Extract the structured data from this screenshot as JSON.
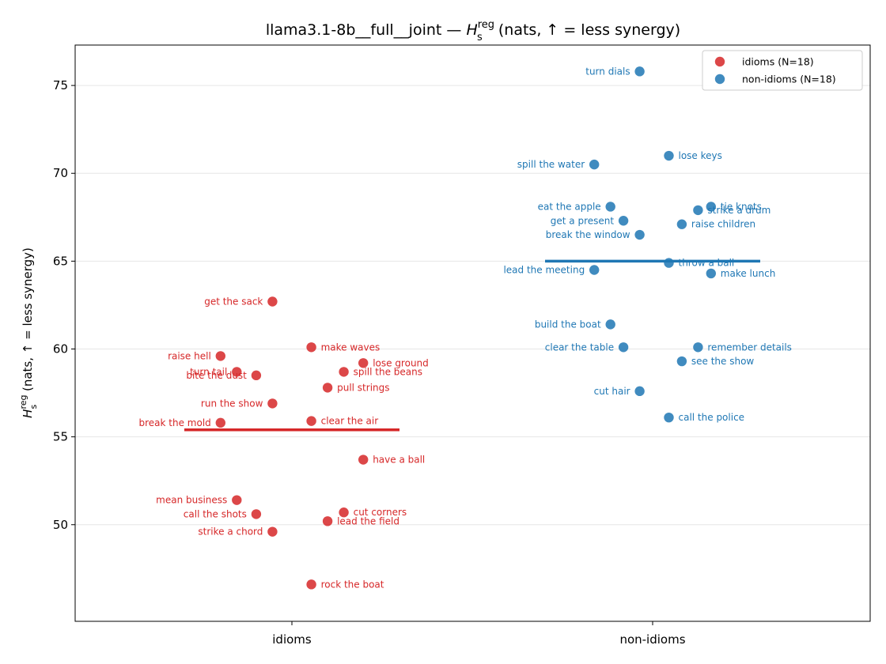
{
  "chart_data": {
    "type": "scatter",
    "title_main": "llama3.1-8b__full__joint — ",
    "title_sym": "H",
    "title_sup": "reg",
    "title_sub": "s",
    "title_rest": " (nats, ↑ = less synergy)",
    "ylabel_sym": "H",
    "ylabel_sup": "reg",
    "ylabel_sub": "s",
    "ylabel_rest": " (nats, ↑ = less synergy)",
    "categories": [
      "idioms",
      "non-idioms"
    ],
    "ylim": [
      44.5,
      77.3
    ],
    "yticks": [
      50,
      55,
      60,
      65,
      70,
      75
    ],
    "grid": "horizontal",
    "legend_position": "top-right",
    "colors": {
      "idioms": "#d62728",
      "non-idioms": "#1f77b4"
    },
    "series": [
      {
        "name": "idioms (N=18)",
        "category": "idioms",
        "mean": 55.4,
        "points": [
          {
            "label": "get the sack",
            "x": -0.06,
            "y": 62.7
          },
          {
            "label": "make waves",
            "x": 0.06,
            "y": 60.1
          },
          {
            "label": "raise hell",
            "x": -0.22,
            "y": 59.6
          },
          {
            "label": "lose ground",
            "x": 0.22,
            "y": 59.2
          },
          {
            "label": "spill the beans",
            "x": 0.16,
            "y": 58.7
          },
          {
            "label": "turn tail",
            "x": -0.17,
            "y": 58.7
          },
          {
            "label": "bite the dust",
            "x": -0.11,
            "y": 58.5
          },
          {
            "label": "pull strings",
            "x": 0.11,
            "y": 57.8
          },
          {
            "label": "run the show",
            "x": -0.06,
            "y": 56.9
          },
          {
            "label": "clear the air",
            "x": 0.06,
            "y": 55.9
          },
          {
            "label": "break the mold",
            "x": -0.22,
            "y": 55.8
          },
          {
            "label": "have a ball",
            "x": 0.22,
            "y": 53.7
          },
          {
            "label": "mean business",
            "x": -0.17,
            "y": 51.4
          },
          {
            "label": "cut corners",
            "x": 0.16,
            "y": 50.7
          },
          {
            "label": "call the shots",
            "x": -0.11,
            "y": 50.6
          },
          {
            "label": "lead the field",
            "x": 0.11,
            "y": 50.2
          },
          {
            "label": "strike a chord",
            "x": -0.06,
            "y": 49.6
          },
          {
            "label": "rock the boat",
            "x": 0.06,
            "y": 46.6
          }
        ]
      },
      {
        "name": "non-idioms (N=18)",
        "category": "non-idioms",
        "mean": 65.0,
        "points": [
          {
            "label": "turn dials",
            "x": -0.04,
            "y": 75.8
          },
          {
            "label": "lose keys",
            "x": 0.05,
            "y": 71.0
          },
          {
            "label": "spill the water",
            "x": -0.18,
            "y": 70.5
          },
          {
            "label": "tie knots",
            "x": 0.18,
            "y": 68.1
          },
          {
            "label": "eat the apple",
            "x": -0.13,
            "y": 68.1
          },
          {
            "label": "strike a drum",
            "x": 0.14,
            "y": 67.9
          },
          {
            "label": "get a present",
            "x": -0.09,
            "y": 67.3
          },
          {
            "label": "raise children",
            "x": 0.09,
            "y": 67.1
          },
          {
            "label": "break the window",
            "x": -0.04,
            "y": 66.5
          },
          {
            "label": "throw a ball",
            "x": 0.05,
            "y": 64.9
          },
          {
            "label": "lead the meeting",
            "x": -0.18,
            "y": 64.5
          },
          {
            "label": "make lunch",
            "x": 0.18,
            "y": 64.3
          },
          {
            "label": "build the boat",
            "x": -0.13,
            "y": 61.4
          },
          {
            "label": "remember details",
            "x": 0.14,
            "y": 60.1
          },
          {
            "label": "clear the table",
            "x": -0.09,
            "y": 60.1
          },
          {
            "label": "see the show",
            "x": 0.09,
            "y": 59.3
          },
          {
            "label": "cut hair",
            "x": -0.04,
            "y": 57.6
          },
          {
            "label": "call the police",
            "x": 0.05,
            "y": 56.1
          }
        ]
      }
    ]
  }
}
